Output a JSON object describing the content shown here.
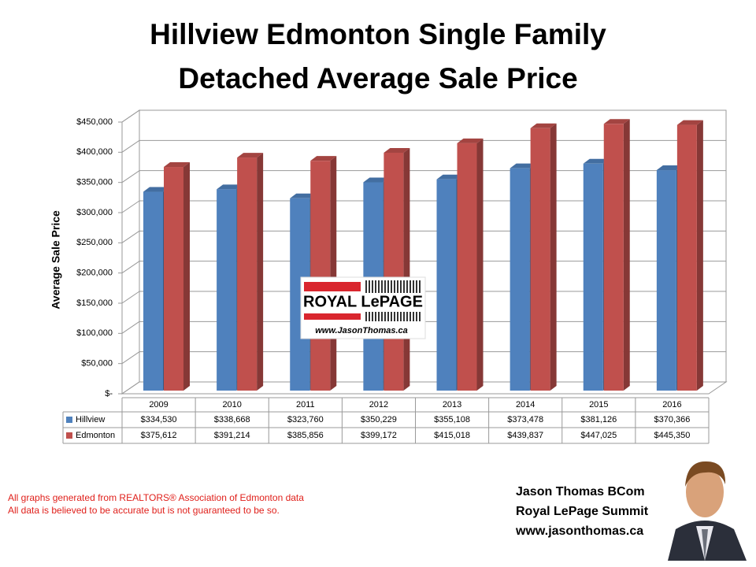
{
  "chart_data": {
    "type": "bar3d",
    "title": "Hillview Edmonton Single Family Detached Average Sale Price",
    "y_label": "Average Sale Price",
    "categories": [
      "2009",
      "2010",
      "2011",
      "2012",
      "2013",
      "2014",
      "2015",
      "2016"
    ],
    "series": [
      {
        "name": "Hillview",
        "color": "#4f81bd",
        "values": [
          334530,
          338668,
          323760,
          350229,
          355108,
          373478,
          381126,
          370366
        ],
        "value_labels": [
          "$334,530",
          "$338,668",
          "$323,760",
          "$350,229",
          "$355,108",
          "$373,478",
          "$381,126",
          "$370,366"
        ]
      },
      {
        "name": "Edmonton",
        "color": "#c0504d",
        "values": [
          375612,
          391214,
          385856,
          399172,
          415018,
          439837,
          447025,
          445350
        ],
        "value_labels": [
          "$375,612",
          "$391,214",
          "$385,856",
          "$399,172",
          "$415,018",
          "$439,837",
          "$447,025",
          "$445,350"
        ]
      }
    ],
    "ylim": [
      0,
      450000
    ],
    "yticks": [
      {
        "value": 0,
        "label": "$-"
      },
      {
        "value": 50000,
        "label": "$50,000"
      },
      {
        "value": 100000,
        "label": "$100,000"
      },
      {
        "value": 150000,
        "label": "$150,000"
      },
      {
        "value": 200000,
        "label": "$200,000"
      },
      {
        "value": 250000,
        "label": "$250,000"
      },
      {
        "value": 300000,
        "label": "$300,000"
      },
      {
        "value": 350000,
        "label": "$350,000"
      },
      {
        "value": 400000,
        "label": "$400,000"
      },
      {
        "value": 450000,
        "label": "$450,000"
      }
    ],
    "grid": true
  },
  "logo": {
    "brand": "ROYAL LePAGE",
    "url": "www.JasonThomas.ca"
  },
  "notes": [
    "All graphs generated from REALTORS® Association of Edmonton data",
    "All data is believed to be accurate but is not guaranteed to be so."
  ],
  "signature": [
    "Jason Thomas BCom",
    "Royal LePage Summit",
    "www.jasonthomas.ca"
  ]
}
